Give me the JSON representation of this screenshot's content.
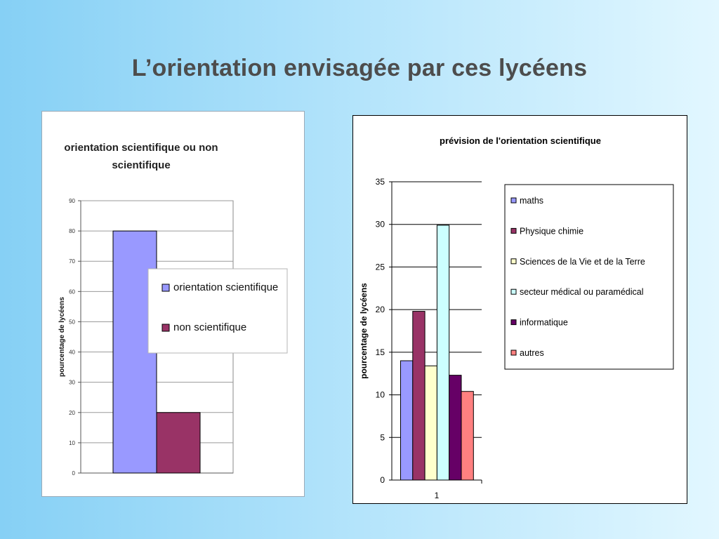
{
  "slide": {
    "title": "L’orientation envisagée par ces lycéens"
  },
  "chart_data": [
    {
      "type": "bar",
      "title": "orientation scientifique ou non scientifique",
      "title_lines": [
        "orientation scientifique ou non",
        "scientifique"
      ],
      "ylabel": "pourcentage de lycéens",
      "ylim": [
        0,
        90
      ],
      "yticks": [
        0,
        10,
        20,
        30,
        40,
        50,
        60,
        70,
        80,
        90
      ],
      "categories": [
        ""
      ],
      "series": [
        {
          "name": "orientation scientifique",
          "values": [
            80
          ],
          "color": "#9999ff"
        },
        {
          "name": "non scientifique",
          "values": [
            20
          ],
          "color": "#993366"
        }
      ],
      "grid": true,
      "legend": "right"
    },
    {
      "type": "bar",
      "title": "prévision de l'orientation scientifique",
      "ylabel": "pourcentage de lycéens",
      "ylim": [
        0,
        35
      ],
      "yticks": [
        0,
        5,
        10,
        15,
        20,
        25,
        30,
        35
      ],
      "categories": [
        "1"
      ],
      "series": [
        {
          "name": "maths",
          "values": [
            14
          ],
          "color": "#9999ff"
        },
        {
          "name": "Physique chimie",
          "values": [
            19.8
          ],
          "color": "#993366"
        },
        {
          "name": "Sciences de la Vie et de la Terre",
          "values": [
            13.4
          ],
          "color": "#ffffcc"
        },
        {
          "name": "secteur médical ou paramédical",
          "values": [
            29.9
          ],
          "color": "#ccffff"
        },
        {
          "name": "informatique",
          "values": [
            12.3
          ],
          "color": "#660066"
        },
        {
          "name": "autres",
          "values": [
            10.4
          ],
          "color": "#ff8080"
        }
      ],
      "grid": true,
      "legend": "right"
    }
  ]
}
